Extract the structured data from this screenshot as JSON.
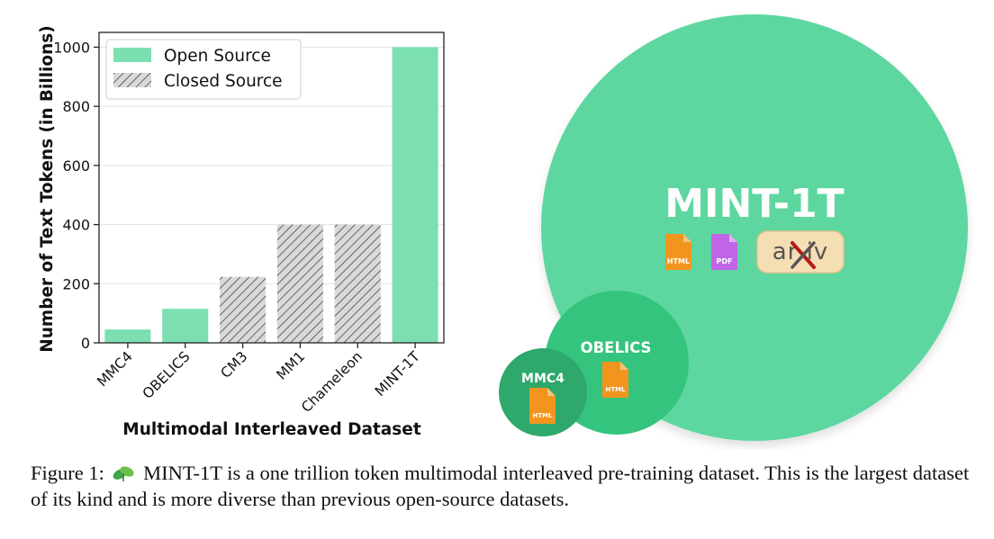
{
  "chart_data": [
    {
      "type": "bar",
      "categories": [
        "MMC4",
        "OBELICS",
        "CM3",
        "MM1",
        "Chameleon",
        "MINT-1T"
      ],
      "values": [
        45,
        115,
        223,
        400,
        400,
        1000
      ],
      "source_type": [
        "open",
        "open",
        "closed",
        "closed",
        "closed",
        "open"
      ],
      "title": "",
      "xlabel": "Multimodal Interleaved Dataset",
      "ylabel": "Number of Text Tokens (in Billions)",
      "ylim": [
        0,
        1050
      ],
      "yticks": [
        0,
        200,
        400,
        600,
        800,
        1000
      ],
      "grid": true,
      "legend": {
        "placement": "top-left",
        "entries": [
          {
            "label": "Open Source",
            "style": "solid"
          },
          {
            "label": "Closed Source",
            "style": "hatched"
          }
        ]
      },
      "colors": {
        "open": "#7bdfb0",
        "closed_fill": "#d9d9d9",
        "hatch": "#333333"
      }
    }
  ],
  "bubbles": {
    "mint": {
      "label": "MINT-1T",
      "color": "#5dd79f",
      "icons": [
        "html-file-icon",
        "pdf-file-icon",
        "arxiv-logo"
      ]
    },
    "obelics": {
      "label": "OBELICS",
      "color": "#34c47e",
      "icons": [
        "html-file-icon"
      ]
    },
    "mmc4": {
      "label": "MMC4",
      "color": "#2ea86b",
      "icons": [
        "html-file-icon"
      ]
    },
    "icon_labels": {
      "html": "HTML",
      "pdf": "PDF",
      "arxiv": "arXiv"
    }
  },
  "caption": {
    "prefix": "Figure 1:",
    "text": "MINT-1T is a one trillion token multimodal interleaved pre-training dataset. This is the largest dataset of its kind and is more diverse than previous open-source datasets."
  }
}
